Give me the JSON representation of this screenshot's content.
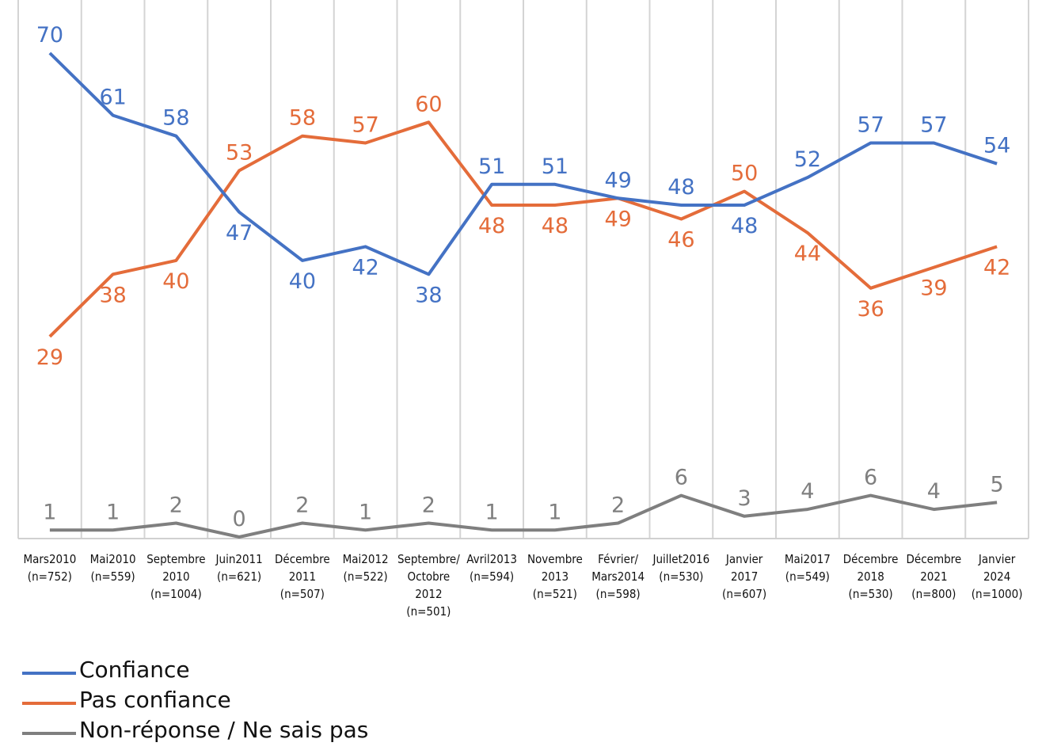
{
  "chart_data": {
    "type": "line",
    "title": "",
    "xlabel": "",
    "ylabel": "",
    "ylim": [
      0,
      70
    ],
    "grid": "vertical",
    "legend_position": "bottom-left",
    "categories": [
      [
        "Mars2010",
        "(n=752)"
      ],
      [
        "Mai2010",
        "(n=559)"
      ],
      [
        "Septembre",
        "2010",
        "(n=1004)"
      ],
      [
        "Juin2011",
        "(n=621)"
      ],
      [
        "Décembre",
        "2011",
        "(n=507)"
      ],
      [
        "Mai2012",
        "(n=522)"
      ],
      [
        "Septembre/",
        "Octobre",
        "2012",
        "(n=501)"
      ],
      [
        "Avril2013",
        "(n=594)"
      ],
      [
        "Novembre",
        "2013",
        "(n=521)"
      ],
      [
        "Février/",
        "Mars2014",
        "(n=598)"
      ],
      [
        "Juillet2016",
        "(n=530)"
      ],
      [
        "Janvier",
        "2017",
        "(n=607)"
      ],
      [
        "Mai2017",
        "(n=549)"
      ],
      [
        "Décembre",
        "2018",
        "(n=530)"
      ],
      [
        "Décembre",
        "2021",
        "(n=800)"
      ],
      [
        "Janvier",
        "2024",
        "(n=1000)"
      ]
    ],
    "series": [
      {
        "name": "Confiance",
        "color": "#4472C4",
        "values": [
          70,
          61,
          58,
          47,
          40,
          42,
          38,
          51,
          51,
          49,
          48,
          48,
          52,
          57,
          57,
          54
        ],
        "label_pos": [
          "above",
          "above",
          "above",
          "below",
          "below",
          "below",
          "below",
          "above",
          "above",
          "above",
          "above",
          "below",
          "above",
          "above",
          "above",
          "above"
        ]
      },
      {
        "name": "Pas confiance",
        "color": "#E46C3A",
        "values": [
          29,
          38,
          40,
          53,
          58,
          57,
          60,
          48,
          48,
          49,
          46,
          50,
          44,
          36,
          39,
          42
        ],
        "label_pos": [
          "below",
          "below",
          "below",
          "above",
          "above",
          "above",
          "above",
          "below",
          "below",
          "below",
          "below",
          "above",
          "below",
          "below",
          "below",
          "below"
        ]
      },
      {
        "name": "Non-réponse / Ne sais pas",
        "color": "#7F7F7F",
        "values": [
          1,
          1,
          2,
          0,
          2,
          1,
          2,
          1,
          1,
          2,
          6,
          3,
          4,
          6,
          4,
          5
        ],
        "label_pos": [
          "above",
          "above",
          "above",
          "above",
          "above",
          "above",
          "above",
          "above",
          "above",
          "above",
          "above",
          "above",
          "above",
          "above",
          "above",
          "above"
        ]
      }
    ]
  },
  "legend": {
    "items": [
      {
        "label": "Confiance",
        "color": "#4472C4"
      },
      {
        "label": "Pas confiance",
        "color": "#E46C3A"
      },
      {
        "label": "Non-réponse / Ne sais pas",
        "color": "#7F7F7F"
      }
    ]
  }
}
